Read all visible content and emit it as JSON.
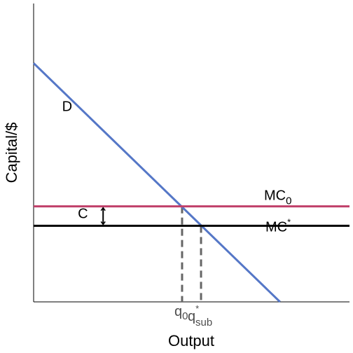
{
  "chart_data": {
    "type": "line",
    "title": "",
    "xlabel": "Output",
    "ylabel": "Capital/$",
    "xlim": [
      0,
      10
    ],
    "ylim": [
      0,
      10
    ],
    "grid": false,
    "legend": "none",
    "series": [
      {
        "name": "D",
        "type": "line",
        "color": "#5577c7",
        "x": [
          0,
          7.8
        ],
        "y": [
          8.0,
          0.0
        ]
      },
      {
        "name": "MC",
        "subscript": "0",
        "type": "hline",
        "color": "#c0406a",
        "y": 3.2
      },
      {
        "name": "MC",
        "superscript": "*",
        "type": "hline",
        "color": "#000000",
        "y": 2.55
      }
    ],
    "reference_lines": [
      {
        "type": "vline",
        "x": 4.7,
        "y_top": 3.2,
        "style": "dashed",
        "color": "#666666"
      },
      {
        "type": "vline",
        "x": 5.3,
        "y_top": 2.55,
        "style": "dashed",
        "color": "#666666"
      }
    ],
    "tick_labels": [
      {
        "x": 4.7,
        "base": "q",
        "subscript": "0"
      },
      {
        "x": 5.3,
        "base": "q",
        "superscript": "*",
        "subscript": "sub"
      }
    ],
    "annotations": [
      {
        "text": "D",
        "at": [
          0.9,
          6.4
        ]
      },
      {
        "text": "C",
        "at": [
          1.4,
          2.8
        ]
      },
      {
        "type": "double-arrow",
        "x": 2.2,
        "y_from": 3.2,
        "y_to": 2.55
      }
    ]
  }
}
